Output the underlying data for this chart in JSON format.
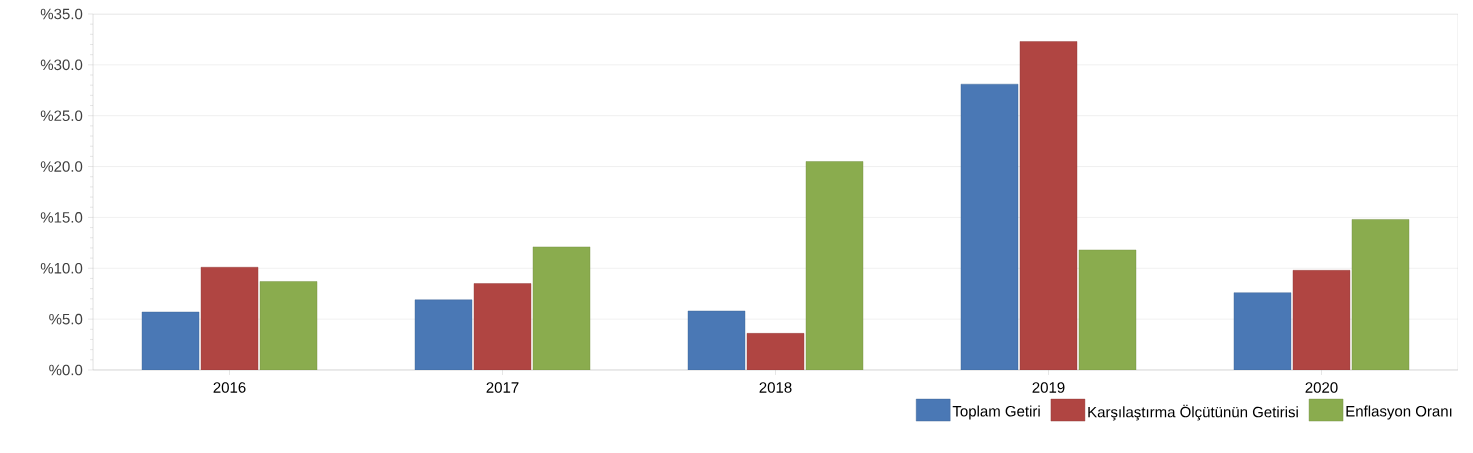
{
  "chart_data": {
    "type": "bar",
    "categories": [
      "2016",
      "2017",
      "2018",
      "2019",
      "2020"
    ],
    "series": [
      {
        "name": "Toplam Getiri",
        "color": "#4a78b5",
        "values": [
          5.7,
          6.9,
          5.8,
          28.1,
          7.6
        ]
      },
      {
        "name": "Karşılaştırma Ölçütünün Getirisi",
        "color": "#b04542",
        "values": [
          10.1,
          8.5,
          3.6,
          32.3,
          9.8
        ]
      },
      {
        "name": "Enflasyon Oranı",
        "color": "#8aac4e",
        "values": [
          8.7,
          12.1,
          20.5,
          11.8,
          14.8
        ]
      }
    ],
    "ylim": [
      0,
      35
    ],
    "yticks": [
      {
        "value": 0,
        "label": "%0.0"
      },
      {
        "value": 5,
        "label": "%5.0"
      },
      {
        "value": 10,
        "label": "%10.0"
      },
      {
        "value": 15,
        "label": "%15.0"
      },
      {
        "value": 20,
        "label": "%20.0"
      },
      {
        "value": 25,
        "label": "%25.0"
      },
      {
        "value": 30,
        "label": "%30.0"
      },
      {
        "value": 35,
        "label": "%35.0"
      }
    ],
    "grid": "y",
    "legend": "bottom right"
  }
}
